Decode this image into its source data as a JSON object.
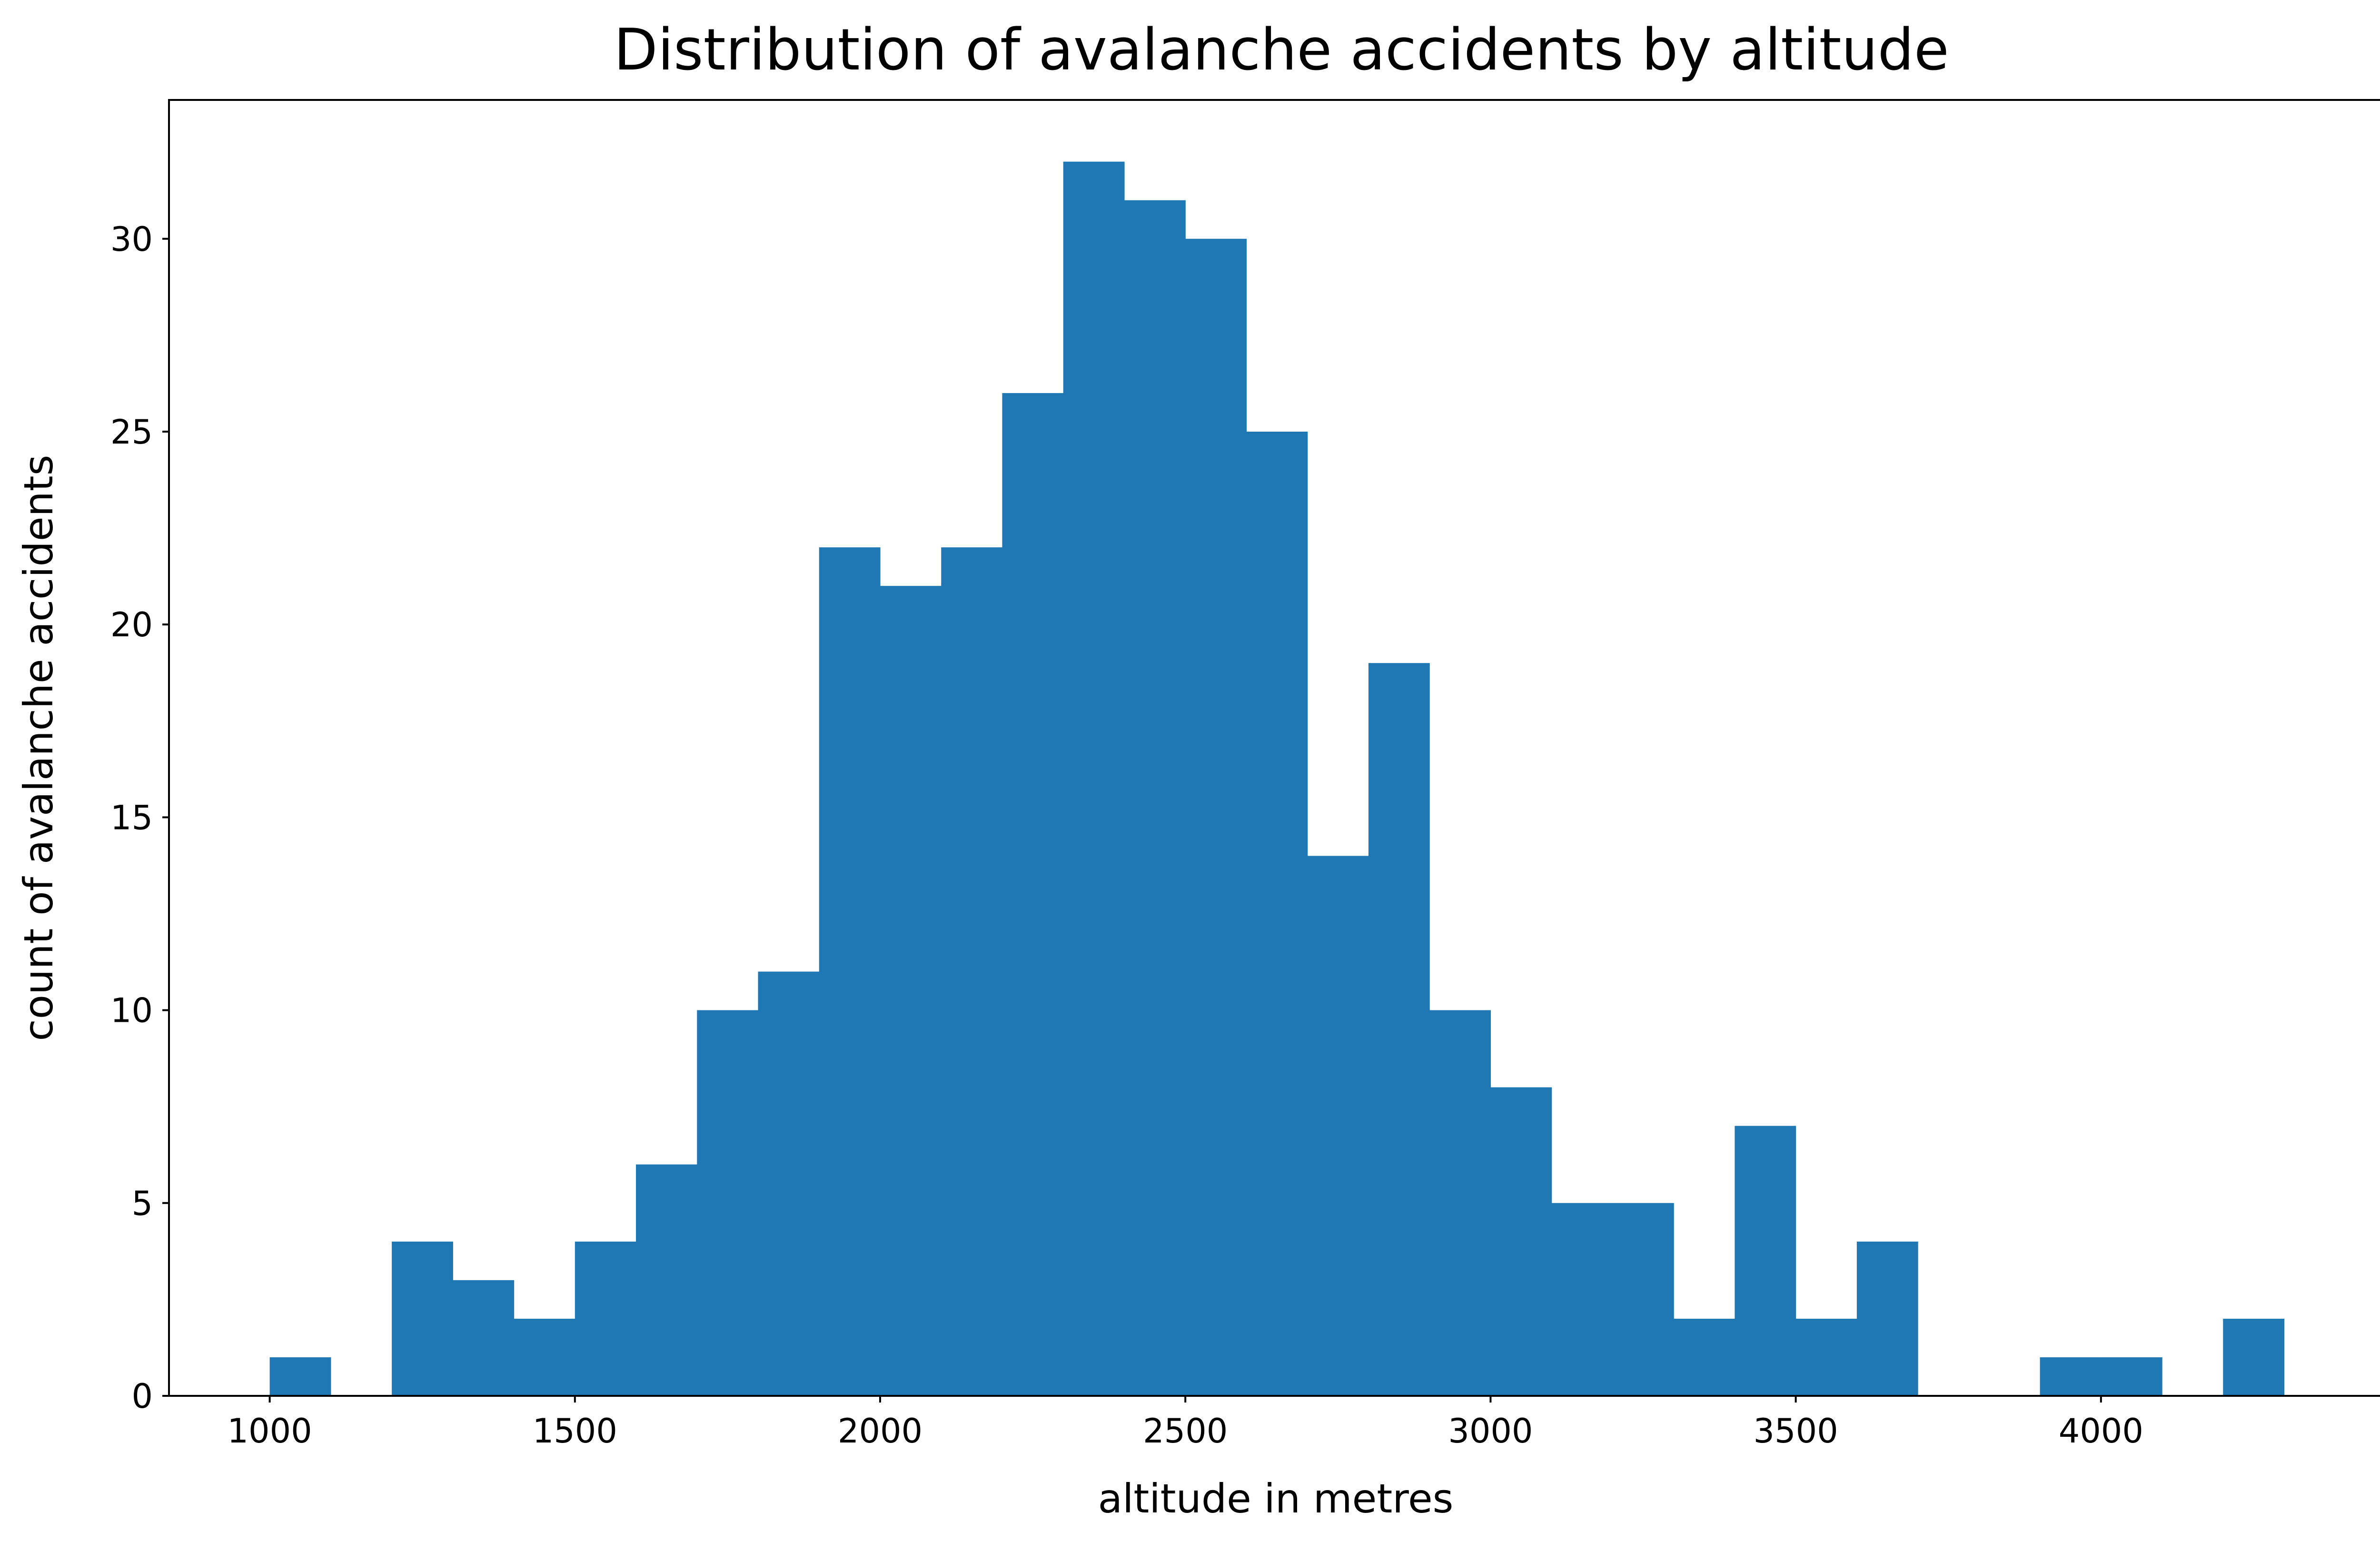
{
  "chart_data": {
    "type": "bar",
    "title": "Distribution of avalanche accidents by altitude",
    "xlabel": "altitude in metres",
    "ylabel": "count of avalanche accidents",
    "bin_width": 100,
    "bins": [
      {
        "start": 1000,
        "count": 1
      },
      {
        "start": 1100,
        "count": 0
      },
      {
        "start": 1200,
        "count": 4
      },
      {
        "start": 1300,
        "count": 3
      },
      {
        "start": 1400,
        "count": 2
      },
      {
        "start": 1500,
        "count": 4
      },
      {
        "start": 1600,
        "count": 6
      },
      {
        "start": 1700,
        "count": 10
      },
      {
        "start": 1800,
        "count": 11
      },
      {
        "start": 1900,
        "count": 22
      },
      {
        "start": 2000,
        "count": 21
      },
      {
        "start": 2100,
        "count": 22
      },
      {
        "start": 2200,
        "count": 26
      },
      {
        "start": 2300,
        "count": 32
      },
      {
        "start": 2400,
        "count": 31
      },
      {
        "start": 2500,
        "count": 30
      },
      {
        "start": 2600,
        "count": 25
      },
      {
        "start": 2700,
        "count": 14
      },
      {
        "start": 2800,
        "count": 19
      },
      {
        "start": 2900,
        "count": 10
      },
      {
        "start": 3000,
        "count": 8
      },
      {
        "start": 3100,
        "count": 5
      },
      {
        "start": 3200,
        "count": 5
      },
      {
        "start": 3300,
        "count": 2
      },
      {
        "start": 3400,
        "count": 7
      },
      {
        "start": 3500,
        "count": 2
      },
      {
        "start": 3600,
        "count": 4
      },
      {
        "start": 3700,
        "count": 0
      },
      {
        "start": 3800,
        "count": 0
      },
      {
        "start": 3900,
        "count": 1
      },
      {
        "start": 4000,
        "count": 1
      },
      {
        "start": 4100,
        "count": 0
      },
      {
        "start": 4200,
        "count": 2
      }
    ],
    "xlim": [
      835,
      4461
    ],
    "ylim": [
      0,
      33.6
    ],
    "xticks": [
      1000,
      1500,
      2000,
      2500,
      3000,
      3500,
      4000
    ],
    "yticks": [
      0,
      5,
      10,
      15,
      20,
      25,
      30
    ],
    "grid": false,
    "bar_color": "#1f77b4"
  }
}
